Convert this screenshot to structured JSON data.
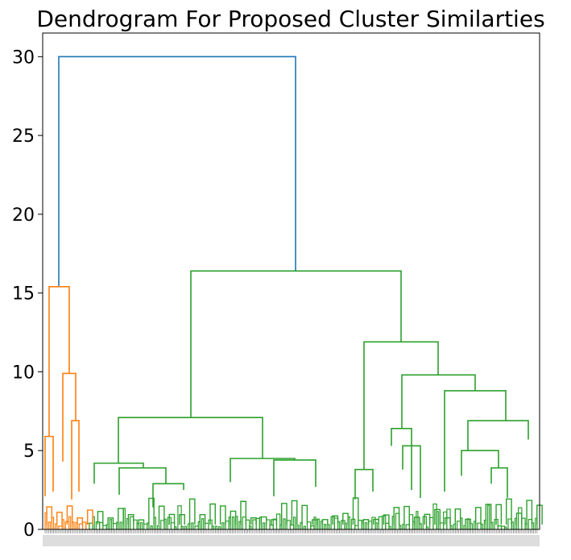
{
  "chart_data": {
    "type": "dendrogram",
    "title": "Dendrogram For Proposed Cluster Similarties",
    "xlabel": "",
    "ylabel": "",
    "ylim": [
      0,
      31.5
    ],
    "yticks": [
      0,
      5,
      10,
      15,
      20,
      25,
      30
    ],
    "grid": false,
    "legend": "none",
    "colors": {
      "root": "#1f77b4",
      "orange": "#ff7f0e",
      "green": "#2ca02c",
      "axis": "#000000"
    },
    "leaf_count": 290,
    "orange_leaf_count": 25,
    "links": [
      {
        "color": "#1f77b4",
        "height": 30.0,
        "from": [
          0,
          15.4
        ],
        "to": [
          1,
          16.4
        ]
      },
      {
        "color": "#ff7f0e",
        "height": 15.4,
        "from": [
          0,
          5.9
        ],
        "to": [
          1,
          9.9
        ]
      },
      {
        "color": "#ff7f0e",
        "height": 5.9,
        "from": [
          0,
          2.1
        ],
        "to": [
          1,
          2.4
        ]
      },
      {
        "color": "#ff7f0e",
        "height": 9.9,
        "from": [
          0,
          4.3
        ],
        "to": [
          1,
          6.9
        ]
      },
      {
        "color": "#ff7f0e",
        "height": 6.9,
        "from": [
          0,
          1.9
        ],
        "to": [
          1,
          2.4
        ]
      },
      {
        "color": "#2ca02c",
        "height": 16.4,
        "from": [
          0,
          7.1
        ],
        "to": [
          1,
          11.9
        ]
      },
      {
        "color": "#2ca02c",
        "height": 7.1,
        "from": [
          0,
          4.2
        ],
        "to": [
          1,
          4.5
        ]
      },
      {
        "color": "#2ca02c",
        "height": 4.2,
        "from": [
          0,
          2.9
        ],
        "to": [
          1,
          3.9
        ]
      },
      {
        "color": "#2ca02c",
        "height": 3.9,
        "from": [
          0,
          2.2
        ],
        "to": [
          1,
          2.9
        ]
      },
      {
        "color": "#2ca02c",
        "height": 2.9,
        "from": [
          0,
          1.4
        ],
        "to": [
          1,
          2.5
        ]
      },
      {
        "color": "#2ca02c",
        "height": 4.5,
        "from": [
          0,
          3.0
        ],
        "to": [
          1,
          4.4
        ]
      },
      {
        "color": "#2ca02c",
        "height": 4.4,
        "from": [
          0,
          2.1
        ],
        "to": [
          1,
          2.7
        ]
      },
      {
        "color": "#2ca02c",
        "height": 11.9,
        "from": [
          0,
          3.8
        ],
        "to": [
          1,
          9.8
        ]
      },
      {
        "color": "#2ca02c",
        "height": 3.8,
        "from": [
          0,
          1.9
        ],
        "to": [
          1,
          2.4
        ]
      },
      {
        "color": "#2ca02c",
        "height": 9.8,
        "from": [
          0,
          6.4
        ],
        "to": [
          1,
          8.8
        ]
      },
      {
        "color": "#2ca02c",
        "height": 6.4,
        "from": [
          0,
          5.3
        ],
        "to": [
          1,
          2.5
        ]
      },
      {
        "color": "#2ca02c",
        "height": 5.3,
        "from": [
          0,
          3.8
        ],
        "to": [
          1,
          2.0
        ]
      },
      {
        "color": "#2ca02c",
        "height": 8.8,
        "from": [
          0,
          2.4
        ],
        "to": [
          1,
          6.9
        ]
      },
      {
        "color": "#2ca02c",
        "height": 6.9,
        "from": [
          0,
          5.0
        ],
        "to": [
          1,
          5.7
        ]
      },
      {
        "color": "#2ca02c",
        "height": 5.0,
        "from": [
          0,
          3.4
        ],
        "to": [
          1,
          3.9
        ]
      },
      {
        "color": "#2ca02c",
        "height": 3.9,
        "from": [
          0,
          2.9
        ],
        "to": [
          1,
          2.0
        ]
      }
    ]
  }
}
